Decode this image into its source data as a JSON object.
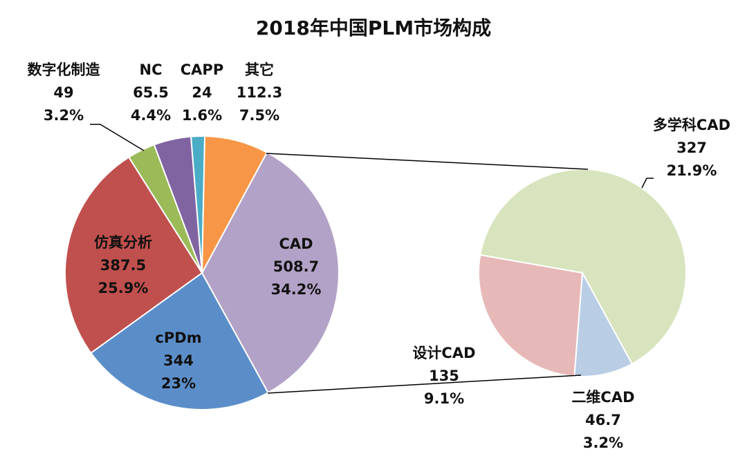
{
  "chart_data": {
    "type": "pie-of-pie",
    "title": "2018年中国PLM市场构成",
    "main_pie": {
      "slices": [
        {
          "label": "CAD",
          "value": 508.7,
          "percent": "34.2%",
          "color": "#b3a2c7"
        },
        {
          "label": "cPDm",
          "value": 344,
          "percent": "23%",
          "color": "#5b8ec9"
        },
        {
          "label": "仿真分析",
          "value": 387.5,
          "percent": "25.9%",
          "color": "#c0504d"
        },
        {
          "label": "数字化制造",
          "value": 49,
          "percent": "3.2%",
          "color": "#9bbb59"
        },
        {
          "label": "NC",
          "value": 65.5,
          "percent": "4.4%",
          "color": "#8064a2"
        },
        {
          "label": "CAPP",
          "value": 24,
          "percent": "1.6%",
          "color": "#4bacc6"
        },
        {
          "label": "其它",
          "value": 112.3,
          "percent": "7.5%",
          "color": "#f79646"
        }
      ]
    },
    "secondary_pie": {
      "breakdown_of": "CAD",
      "slices": [
        {
          "label": "多学科CAD",
          "value": 327,
          "percent": "21.9%",
          "color": "#d7e4bd"
        },
        {
          "label": "二维CAD",
          "value": 46.7,
          "percent": "3.2%",
          "color": "#b9cde5"
        },
        {
          "label": "设计CAD",
          "value": 135,
          "percent": "9.1%",
          "color": "#e6b9b8"
        }
      ]
    }
  }
}
